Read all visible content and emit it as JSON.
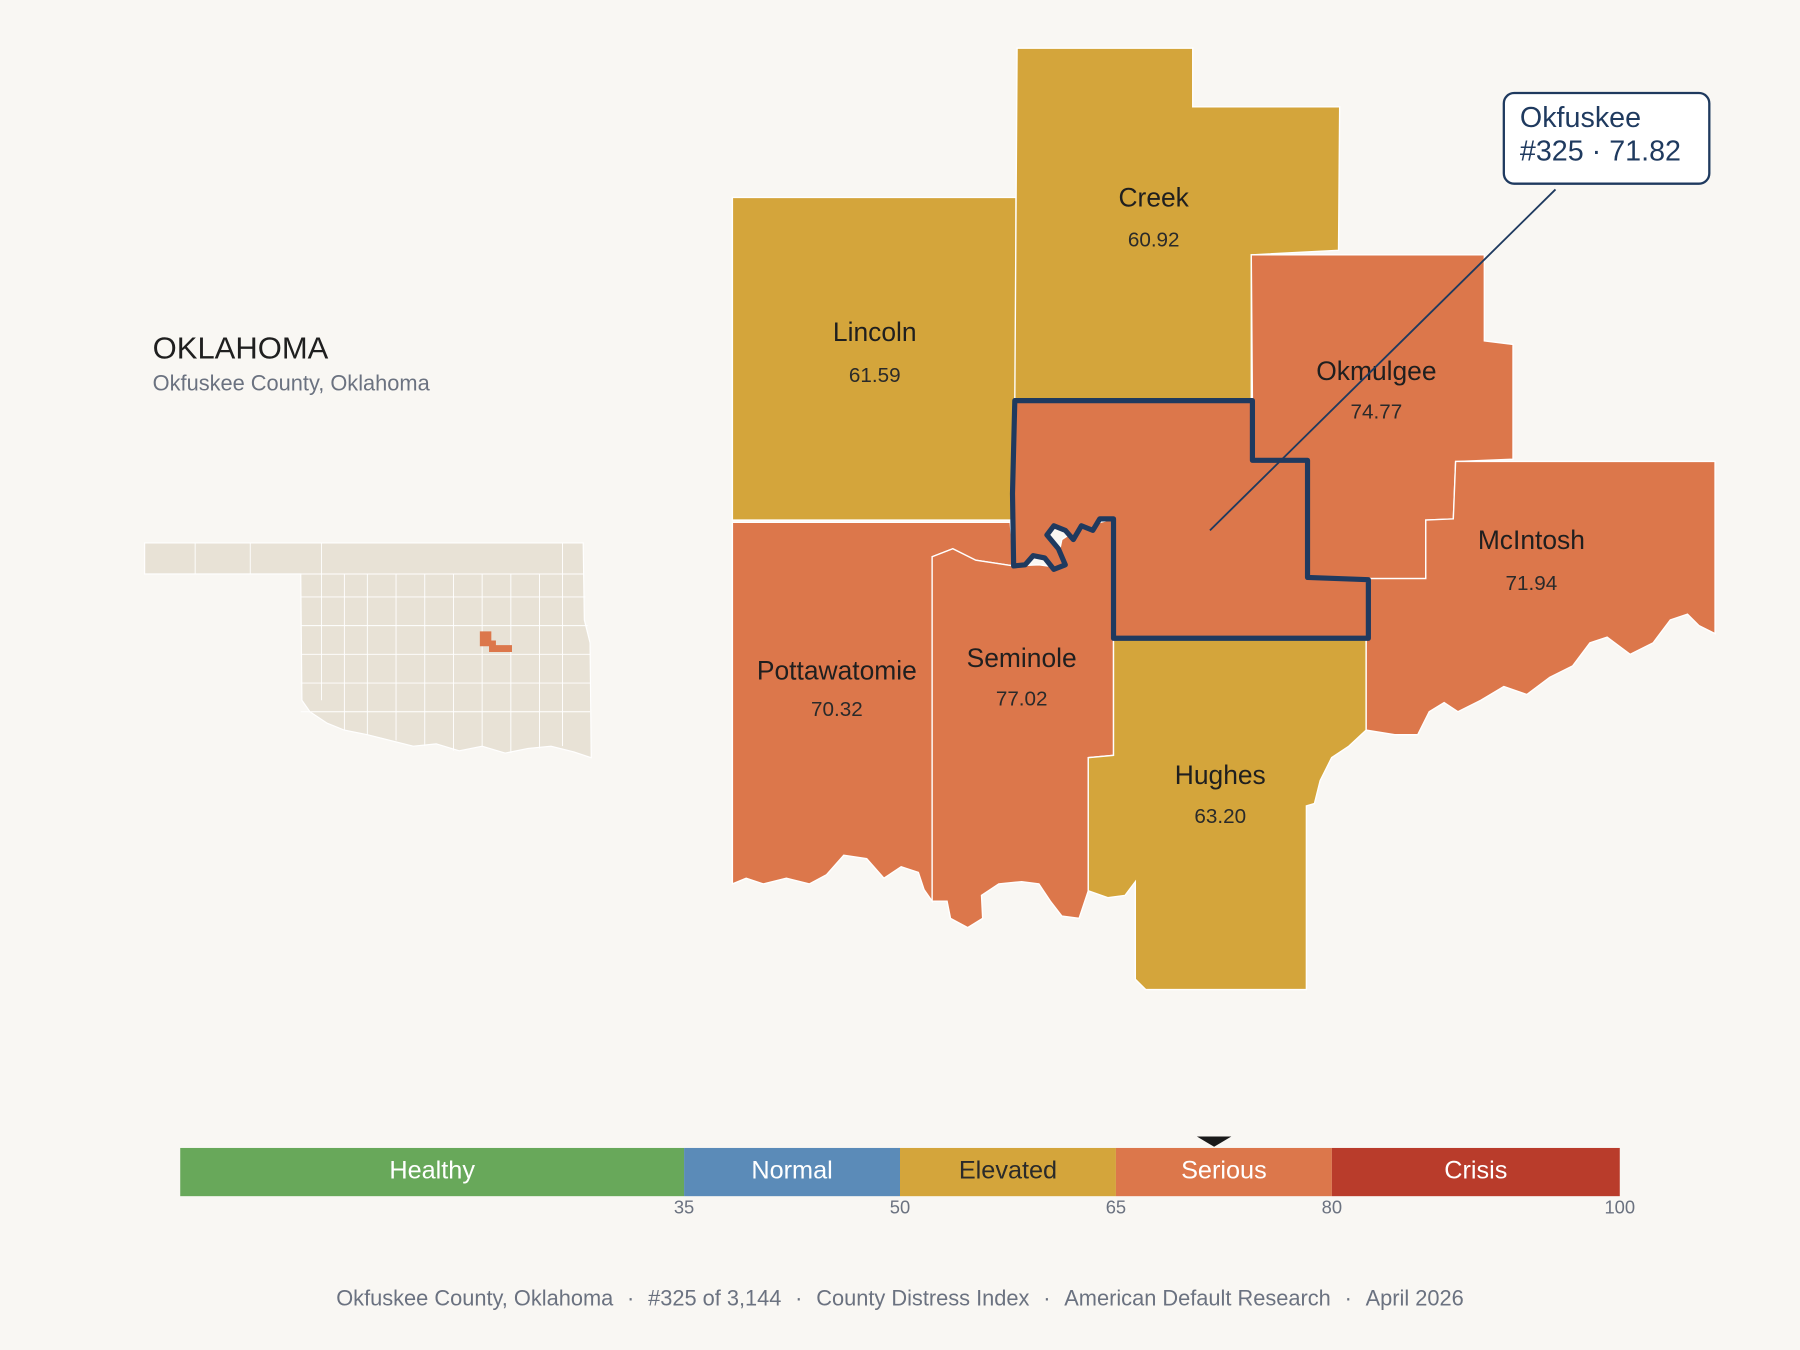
{
  "header": {
    "title": "OKLAHOMA",
    "subtitle": "Okfuskee County, Oklahoma"
  },
  "counties": [
    {
      "name": "Lincoln",
      "value": "61.59",
      "color": "#d4a53b"
    },
    {
      "name": "Creek",
      "value": "60.92",
      "color": "#d4a53b"
    },
    {
      "name": "Okmulgee",
      "value": "74.77",
      "color": "#dc774b"
    },
    {
      "name": "McIntosh",
      "value": "71.94",
      "color": "#dc774b"
    },
    {
      "name": "Pottawatomie",
      "value": "70.32",
      "color": "#dc774b"
    },
    {
      "name": "Seminole",
      "value": "77.02",
      "color": "#dc774b"
    },
    {
      "name": "Hughes",
      "value": "63.20",
      "color": "#d4a53b"
    }
  ],
  "focus": {
    "color": "#dc774b",
    "outline": "#1f3a5f",
    "callout": {
      "name": "Okfuskee",
      "detail": "#325 · 71.82"
    }
  },
  "scale": {
    "lim": [
      0,
      100
    ],
    "ticks": [
      35,
      50,
      65,
      80,
      100
    ],
    "marker": 71.82,
    "bands": [
      {
        "label": "Healthy",
        "from": 0,
        "to": 35,
        "color": "#68a85a"
      },
      {
        "label": "Normal",
        "from": 35,
        "to": 50,
        "color": "#5b8bb8"
      },
      {
        "label": "Elevated",
        "from": 50,
        "to": 65,
        "color": "#d4a53b"
      },
      {
        "label": "Serious",
        "from": 65,
        "to": 80,
        "color": "#dc774b"
      },
      {
        "label": "Crisis",
        "from": 80,
        "to": 100,
        "color": "#b93c2b"
      }
    ]
  },
  "footer": {
    "separator": "·",
    "parts": [
      "Okfuskee County, Oklahoma",
      "#325 of 3,144",
      "County Distress Index",
      "American Default Research",
      "April 2026"
    ]
  }
}
